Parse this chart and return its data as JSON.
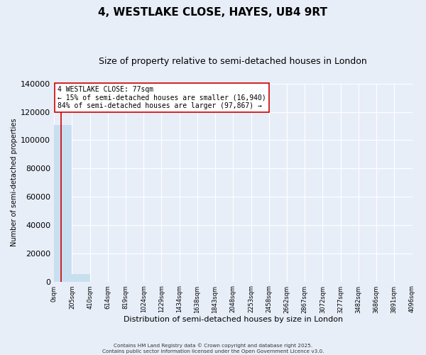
{
  "title": "4, WESTLAKE CLOSE, HAYES, UB4 9RT",
  "subtitle": "Size of property relative to semi-detached houses in London",
  "xlabel": "Distribution of semi-detached houses by size in London",
  "ylabel": "Number of semi-detached properties",
  "annotation_title": "4 WESTLAKE CLOSE: 77sqm",
  "annotation_line1": "← 15% of semi-detached houses are smaller (16,940)",
  "annotation_line2": "84% of semi-detached houses are larger (97,867) →",
  "property_size_sqm": 77,
  "bin_edges": [
    0,
    205,
    410,
    614,
    819,
    1024,
    1229,
    1434,
    1638,
    1843,
    2048,
    2253,
    2458,
    2662,
    2867,
    3072,
    3277,
    3482,
    3686,
    3891,
    4096
  ],
  "bar_heights": [
    110700,
    5100,
    0,
    0,
    0,
    0,
    0,
    0,
    0,
    0,
    0,
    0,
    0,
    0,
    0,
    0,
    0,
    0,
    0,
    0
  ],
  "bar_color": "#c8dff0",
  "marker_color": "#cc0000",
  "ylim": [
    0,
    140000
  ],
  "yticks": [
    0,
    20000,
    40000,
    60000,
    80000,
    100000,
    120000,
    140000
  ],
  "background_color": "#e8eef8",
  "grid_color": "#ffffff",
  "footer_line1": "Contains HM Land Registry data © Crown copyright and database right 2025.",
  "footer_line2": "Contains public sector information licensed under the Open Government Licence v3.0.",
  "annotation_box_facecolor": "#ffffff",
  "annotation_box_edgecolor": "#cc0000",
  "title_fontsize": 11,
  "subtitle_fontsize": 9,
  "ylabel_fontsize": 7,
  "xlabel_fontsize": 8,
  "ytick_fontsize": 8,
  "xtick_fontsize": 6
}
